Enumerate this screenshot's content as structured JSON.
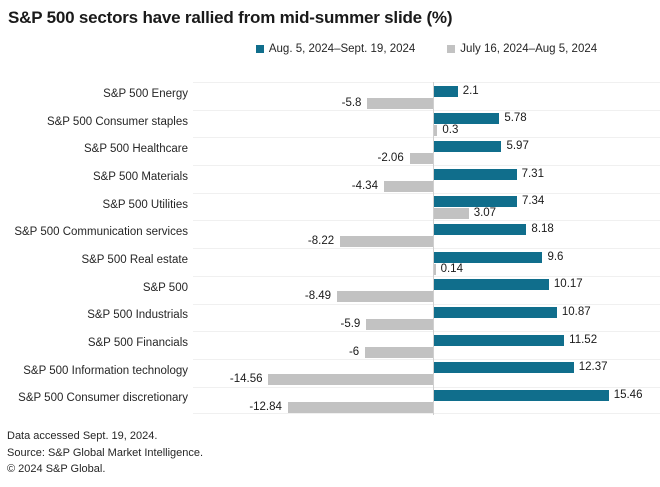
{
  "title": "S&P 500 sectors have rallied from mid-summer slide (%)",
  "footer": {
    "line1": "Data accessed Sept. 19, 2024.",
    "line2": "Source: S&P Global Market Intelligence.",
    "line3": "© 2024 S&P Global."
  },
  "colors": {
    "series1": "#106e8c",
    "series2": "#c2c2c2",
    "row_separator": "#f0f0f0",
    "zero_line": "#cfcfcf",
    "text": "#262626"
  },
  "chart_data": {
    "type": "bar",
    "orientation": "horizontal",
    "title": "S&P 500 sectors have rallied from mid-summer slide (%)",
    "legend_position": "top-center",
    "grid": "horizontal row separators only, vertical zero axis line",
    "xlim": [
      -21,
      20
    ],
    "categories": [
      "S&P 500 Energy",
      "S&P 500 Consumer staples",
      "S&P 500 Healthcare",
      "S&P 500 Materials",
      "S&P 500 Utilities",
      "S&P 500 Communication services",
      "S&P 500 Real estate",
      "S&P 500",
      "S&P 500 Industrials",
      "S&P 500 Financials",
      "S&P 500 Information technology",
      "S&P 500 Consumer discretionary"
    ],
    "series": [
      {
        "name": "Aug. 5, 2024–Sept. 19, 2024",
        "color": "#106e8c",
        "values": [
          2.1,
          5.78,
          5.97,
          7.31,
          7.34,
          8.18,
          9.6,
          10.17,
          10.87,
          11.52,
          12.37,
          15.46
        ],
        "labels": [
          "2.1",
          "5.78",
          "5.97",
          "7.31",
          "7.34",
          "8.18",
          "9.6",
          "10.17",
          "10.87",
          "11.52",
          "12.37",
          "15.46"
        ]
      },
      {
        "name": "July 16, 2024–Aug 5, 2024",
        "color": "#c2c2c2",
        "values": [
          -5.8,
          0.3,
          -2.06,
          -4.34,
          3.07,
          -8.22,
          0.14,
          -8.49,
          -5.9,
          -6,
          -14.56,
          -12.84
        ],
        "labels": [
          "-5.8",
          "0.3",
          "-2.06",
          "-4.34",
          "3.07",
          "-8.22",
          "0.14",
          "-8.49",
          "-5.9",
          "-6",
          "-14.56",
          "-12.84"
        ]
      }
    ]
  }
}
